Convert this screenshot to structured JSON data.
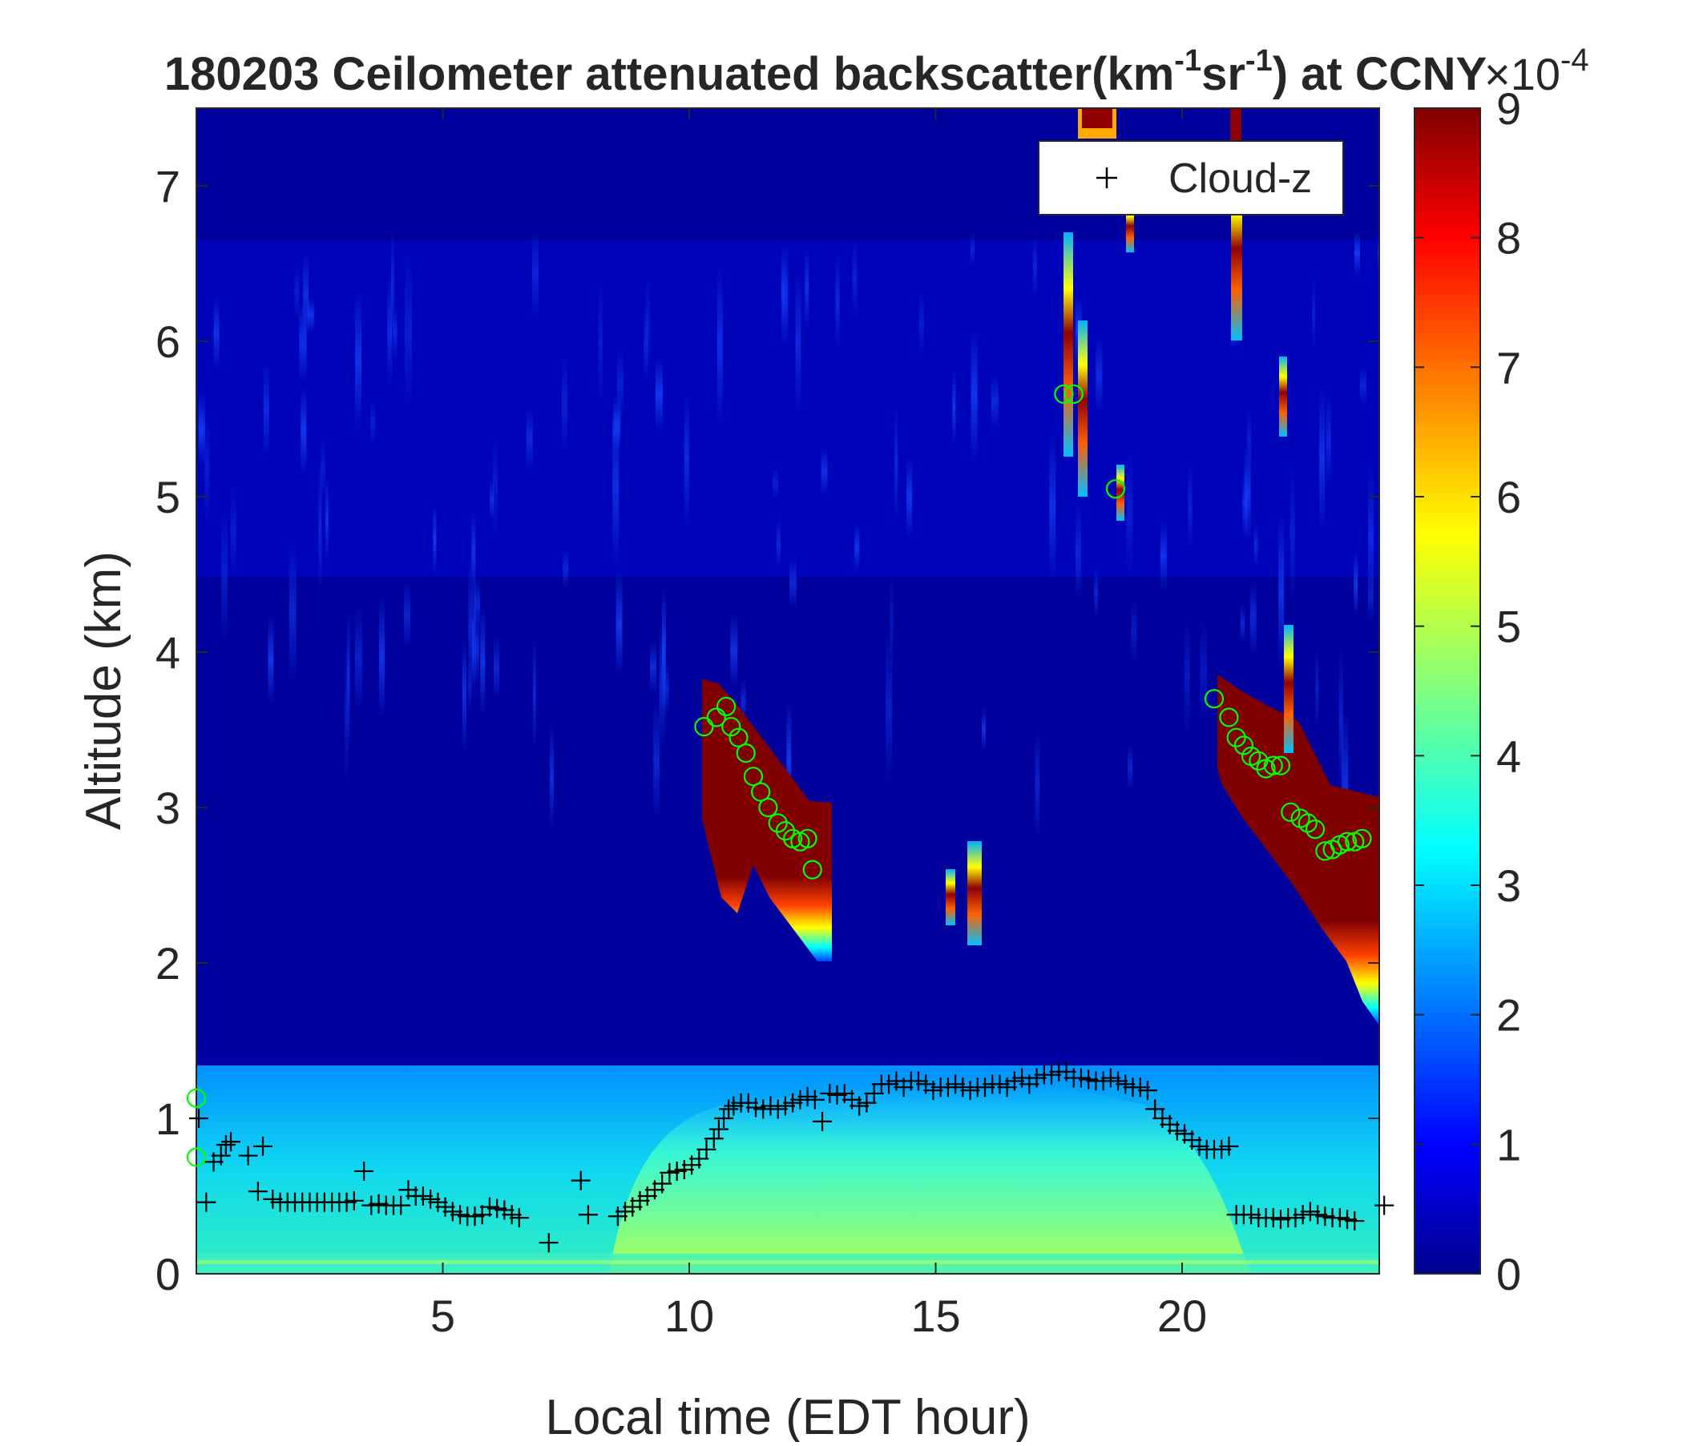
{
  "chart_data": {
    "type": "heatmap",
    "title": {
      "main": "180203 Ceilometer attenuated backscatter(km",
      "exp1": "-1",
      "mid": "sr",
      "exp2": "-1",
      "tail": ") at CCNY"
    },
    "xlabel": "Local time (EDT hour)",
    "ylabel": "Altitude (km)",
    "xlim": [
      0,
      24
    ],
    "ylim": [
      0,
      7.5
    ],
    "x_ticks": [
      5,
      10,
      15,
      20
    ],
    "y_ticks": [
      0,
      1,
      2,
      3,
      4,
      5,
      6,
      7
    ],
    "colorbar": {
      "colormap": "jet",
      "range": [
        0,
        9
      ],
      "ticks": [
        0,
        1,
        2,
        3,
        4,
        5,
        6,
        7,
        8,
        9
      ],
      "multiplier_base": "×10",
      "multiplier_exp": "-4"
    },
    "legend": {
      "position": "top-right",
      "entries": [
        {
          "marker": "+",
          "label": "Cloud-z"
        }
      ]
    },
    "series": [
      {
        "marker": "+",
        "color": "#000000",
        "points": [
          [
            0.05,
            1.0
          ],
          [
            0.2,
            0.46
          ],
          [
            0.35,
            0.72
          ],
          [
            0.5,
            0.76
          ],
          [
            0.6,
            0.83
          ],
          [
            0.7,
            0.85
          ],
          [
            1.05,
            0.76
          ],
          [
            1.25,
            0.53
          ],
          [
            1.35,
            0.82
          ],
          [
            1.55,
            0.48
          ],
          [
            1.7,
            0.46
          ],
          [
            1.85,
            0.46
          ],
          [
            2.0,
            0.46
          ],
          [
            2.15,
            0.46
          ],
          [
            2.3,
            0.46
          ],
          [
            2.45,
            0.46
          ],
          [
            2.6,
            0.46
          ],
          [
            2.75,
            0.46
          ],
          [
            2.9,
            0.46
          ],
          [
            3.05,
            0.46
          ],
          [
            3.2,
            0.47
          ],
          [
            3.4,
            0.66
          ],
          [
            3.55,
            0.44
          ],
          [
            3.7,
            0.45
          ],
          [
            3.85,
            0.44
          ],
          [
            4.0,
            0.44
          ],
          [
            4.15,
            0.44
          ],
          [
            4.3,
            0.54
          ],
          [
            4.45,
            0.5
          ],
          [
            4.6,
            0.5
          ],
          [
            4.75,
            0.48
          ],
          [
            4.9,
            0.46
          ],
          [
            5.05,
            0.43
          ],
          [
            5.2,
            0.4
          ],
          [
            5.35,
            0.38
          ],
          [
            5.5,
            0.37
          ],
          [
            5.65,
            0.37
          ],
          [
            5.8,
            0.38
          ],
          [
            5.95,
            0.43
          ],
          [
            6.1,
            0.42
          ],
          [
            6.25,
            0.41
          ],
          [
            6.4,
            0.38
          ],
          [
            6.55,
            0.36
          ],
          [
            7.15,
            0.2
          ],
          [
            7.8,
            0.6
          ],
          [
            7.95,
            0.38
          ],
          [
            8.55,
            0.37
          ],
          [
            8.7,
            0.4
          ],
          [
            8.85,
            0.43
          ],
          [
            9.0,
            0.47
          ],
          [
            9.15,
            0.5
          ],
          [
            9.3,
            0.54
          ],
          [
            9.45,
            0.58
          ],
          [
            9.6,
            0.65
          ],
          [
            9.75,
            0.66
          ],
          [
            9.9,
            0.67
          ],
          [
            10.05,
            0.7
          ],
          [
            10.2,
            0.74
          ],
          [
            10.35,
            0.8
          ],
          [
            10.5,
            0.87
          ],
          [
            10.6,
            0.93
          ],
          [
            10.7,
            1.0
          ],
          [
            10.8,
            1.06
          ],
          [
            10.9,
            1.08
          ],
          [
            11.05,
            1.1
          ],
          [
            11.2,
            1.1
          ],
          [
            11.35,
            1.07
          ],
          [
            11.5,
            1.06
          ],
          [
            11.65,
            1.08
          ],
          [
            11.8,
            1.06
          ],
          [
            11.95,
            1.08
          ],
          [
            12.1,
            1.1
          ],
          [
            12.25,
            1.12
          ],
          [
            12.4,
            1.14
          ],
          [
            12.55,
            1.12
          ],
          [
            12.7,
            0.98
          ],
          [
            12.85,
            1.16
          ],
          [
            13.0,
            1.15
          ],
          [
            13.15,
            1.16
          ],
          [
            13.3,
            1.12
          ],
          [
            13.45,
            1.08
          ],
          [
            13.6,
            1.1
          ],
          [
            13.75,
            1.16
          ],
          [
            13.9,
            1.22
          ],
          [
            14.05,
            1.22
          ],
          [
            14.2,
            1.24
          ],
          [
            14.35,
            1.2
          ],
          [
            14.5,
            1.24
          ],
          [
            14.65,
            1.24
          ],
          [
            14.8,
            1.22
          ],
          [
            14.95,
            1.18
          ],
          [
            15.1,
            1.2
          ],
          [
            15.25,
            1.2
          ],
          [
            15.4,
            1.22
          ],
          [
            15.55,
            1.2
          ],
          [
            15.7,
            1.18
          ],
          [
            15.85,
            1.2
          ],
          [
            16.0,
            1.2
          ],
          [
            16.15,
            1.22
          ],
          [
            16.3,
            1.22
          ],
          [
            16.45,
            1.2
          ],
          [
            16.6,
            1.24
          ],
          [
            16.75,
            1.26
          ],
          [
            16.9,
            1.22
          ],
          [
            17.05,
            1.26
          ],
          [
            17.2,
            1.28
          ],
          [
            17.35,
            1.28
          ],
          [
            17.5,
            1.3
          ],
          [
            17.65,
            1.3
          ],
          [
            17.8,
            1.26
          ],
          [
            17.95,
            1.26
          ],
          [
            18.1,
            1.25
          ],
          [
            18.25,
            1.24
          ],
          [
            18.4,
            1.24
          ],
          [
            18.55,
            1.26
          ],
          [
            18.7,
            1.24
          ],
          [
            18.85,
            1.22
          ],
          [
            19.0,
            1.2
          ],
          [
            19.15,
            1.2
          ],
          [
            19.3,
            1.18
          ],
          [
            19.45,
            1.06
          ],
          [
            19.6,
            1.0
          ],
          [
            19.75,
            0.96
          ],
          [
            19.9,
            0.92
          ],
          [
            20.05,
            0.9
          ],
          [
            20.2,
            0.86
          ],
          [
            20.35,
            0.82
          ],
          [
            20.5,
            0.8
          ],
          [
            20.65,
            0.8
          ],
          [
            20.8,
            0.8
          ],
          [
            20.95,
            0.82
          ],
          [
            21.1,
            0.38
          ],
          [
            21.25,
            0.38
          ],
          [
            21.4,
            0.38
          ],
          [
            21.55,
            0.36
          ],
          [
            21.7,
            0.36
          ],
          [
            21.85,
            0.36
          ],
          [
            22.0,
            0.35
          ],
          [
            22.15,
            0.36
          ],
          [
            22.3,
            0.36
          ],
          [
            22.45,
            0.38
          ],
          [
            22.6,
            0.4
          ],
          [
            22.75,
            0.38
          ],
          [
            22.9,
            0.37
          ],
          [
            23.05,
            0.36
          ],
          [
            23.2,
            0.36
          ],
          [
            23.35,
            0.35
          ],
          [
            23.5,
            0.34
          ],
          [
            24.1,
            0.44
          ]
        ]
      },
      {
        "marker": "o",
        "color": "#00ff00",
        "points": [
          [
            0.0,
            1.13
          ],
          [
            0.0,
            0.75
          ],
          [
            10.3,
            3.52
          ],
          [
            10.55,
            3.58
          ],
          [
            10.75,
            3.65
          ],
          [
            10.85,
            3.52
          ],
          [
            11.0,
            3.45
          ],
          [
            11.15,
            3.35
          ],
          [
            11.3,
            3.2
          ],
          [
            11.45,
            3.1
          ],
          [
            11.6,
            3.0
          ],
          [
            11.8,
            2.9
          ],
          [
            11.95,
            2.85
          ],
          [
            12.1,
            2.8
          ],
          [
            12.25,
            2.78
          ],
          [
            12.4,
            2.8
          ],
          [
            12.5,
            2.6
          ],
          [
            17.6,
            5.66
          ],
          [
            17.8,
            5.66
          ],
          [
            18.65,
            5.05
          ],
          [
            20.65,
            3.7
          ],
          [
            20.95,
            3.58
          ],
          [
            21.1,
            3.45
          ],
          [
            21.25,
            3.4
          ],
          [
            21.4,
            3.33
          ],
          [
            21.55,
            3.3
          ],
          [
            21.7,
            3.25
          ],
          [
            21.85,
            3.27
          ],
          [
            22.0,
            3.27
          ],
          [
            22.2,
            2.97
          ],
          [
            22.4,
            2.93
          ],
          [
            22.55,
            2.9
          ],
          [
            22.7,
            2.86
          ],
          [
            22.9,
            2.72
          ],
          [
            23.05,
            2.73
          ],
          [
            23.2,
            2.76
          ],
          [
            23.35,
            2.78
          ],
          [
            23.5,
            2.78
          ],
          [
            23.65,
            2.8
          ]
        ]
      }
    ]
  }
}
